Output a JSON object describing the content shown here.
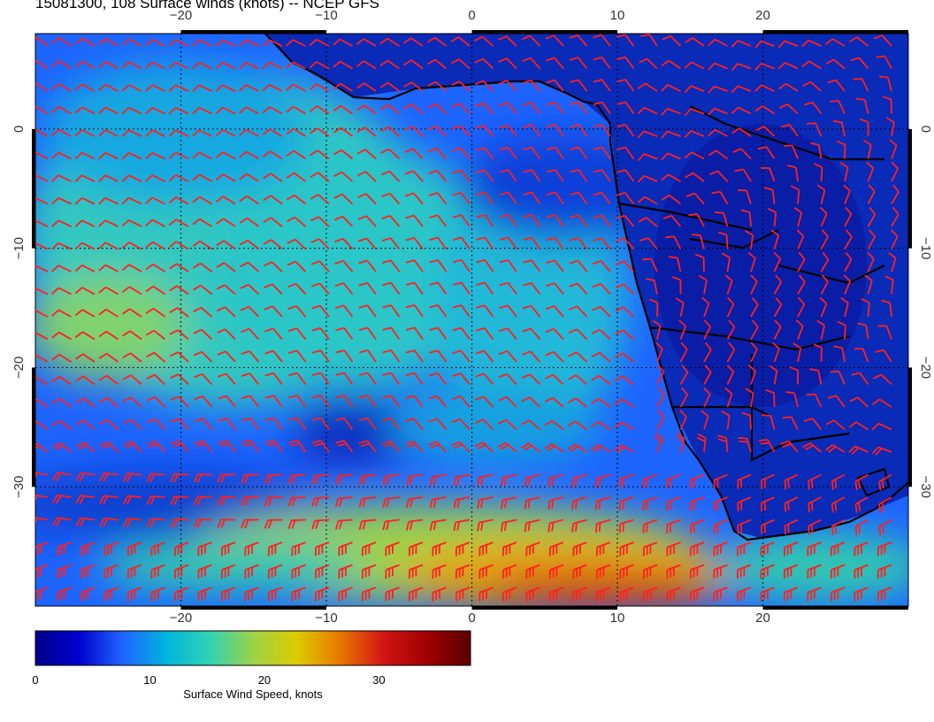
{
  "title": "15081300, 108 Surface winds (knots) -- NCEP GFS",
  "map": {
    "lon_range": [
      -30,
      30
    ],
    "lat_range": [
      -40,
      8
    ],
    "lon_ticks": [
      "−20",
      "−10",
      "0",
      "10",
      "20"
    ],
    "lat_ticks": [
      "0",
      "−10",
      "−20",
      "−30"
    ],
    "graticule": "dotted",
    "barb_color": "#ff2020",
    "coast_color": "#000000"
  },
  "colorbar": {
    "label": "Surface Wind Speed, knots",
    "range": [
      0,
      38
    ],
    "tick_labels": [
      "0",
      "10",
      "20",
      "30"
    ],
    "colors": [
      "#00008b",
      "#0000cd",
      "#1e64ff",
      "#00b4dc",
      "#30d2b4",
      "#9cd248",
      "#dccc00",
      "#e87800",
      "#d21414",
      "#a00000",
      "#5a0000"
    ]
  }
}
